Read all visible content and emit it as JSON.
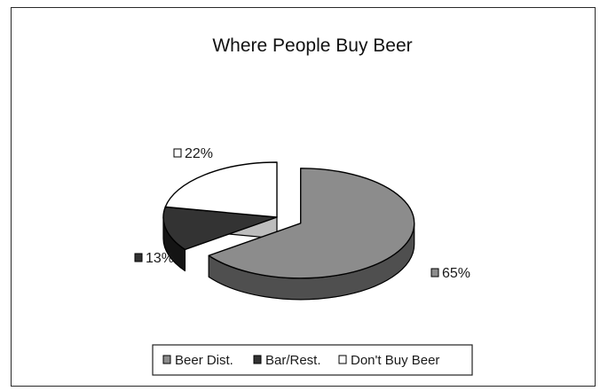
{
  "chart_data": {
    "type": "pie",
    "title": "Where People Buy Beer",
    "legend_position": "bottom",
    "slices": [
      {
        "label": "Beer Dist.",
        "value": 65,
        "display": "65%",
        "color": "#8c8c8c"
      },
      {
        "label": "Bar/Rest.",
        "value": 13,
        "display": "13%",
        "color": "#333333"
      },
      {
        "label": "Don't Buy Beer",
        "value": 22,
        "display": "22%",
        "color": "#ffffff"
      }
    ]
  }
}
